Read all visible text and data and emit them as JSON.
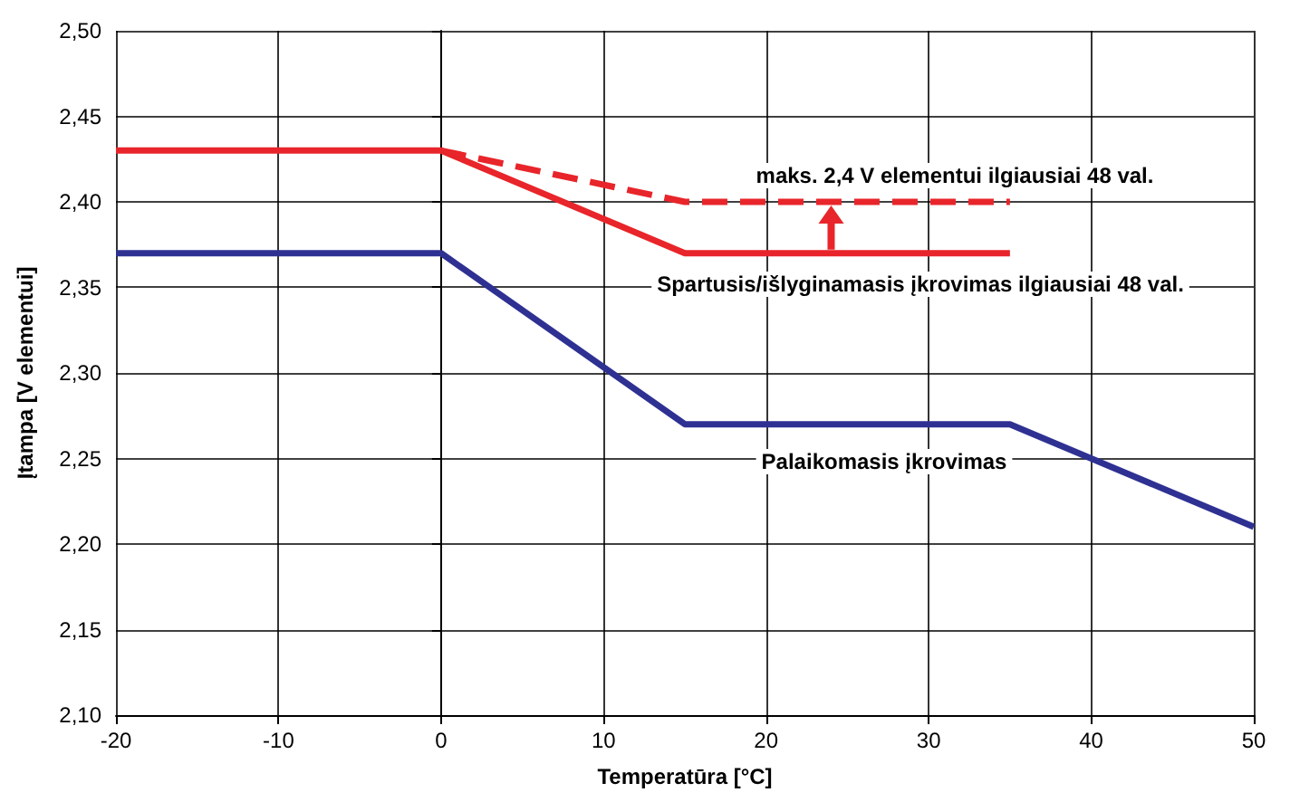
{
  "chart_data": {
    "type": "line",
    "xlabel": "Temperatūra [°C]",
    "ylabel": "Įtampa [V elementui]",
    "xlim": [
      -20,
      50
    ],
    "xticks": [
      -20,
      -10,
      0,
      10,
      20,
      30,
      40,
      50
    ],
    "ylim": [
      2.1,
      2.5
    ],
    "yticks": [
      {
        "value": 2.1,
        "label": "2,10"
      },
      {
        "value": 2.15,
        "label": "2,15"
      },
      {
        "value": 2.2,
        "label": "2,20"
      },
      {
        "value": 2.25,
        "label": "2,25"
      },
      {
        "value": 2.3,
        "label": "2,30"
      },
      {
        "value": 2.35,
        "label": "2,35"
      },
      {
        "value": 2.4,
        "label": "2,40"
      },
      {
        "value": 2.45,
        "label": "2,45"
      },
      {
        "value": 2.5,
        "label": "2,50"
      }
    ],
    "grid": true,
    "marker": "none",
    "series": [
      {
        "color": "#e8252a",
        "line_style": "solid",
        "x": [
          -20,
          0,
          15,
          35
        ],
        "values": [
          2.43,
          2.43,
          2.37,
          2.37
        ]
      },
      {
        "color": "#e8252a",
        "line_style": "dashed",
        "x": [
          0,
          15,
          35
        ],
        "values": [
          2.43,
          2.4,
          2.4
        ]
      },
      {
        "color": "#2e3192",
        "line_style": "solid",
        "x": [
          -20,
          0,
          15,
          35,
          50
        ],
        "values": [
          2.37,
          2.37,
          2.27,
          2.27,
          2.21
        ]
      }
    ],
    "annotations": [
      "maks. 2,4 V elementui ilgiausiai 48 val.",
      "Spartusis/išlyginamasis įkrovimas ilgiausiai 48 val.",
      "Palaikomasis įkrovimas"
    ]
  }
}
